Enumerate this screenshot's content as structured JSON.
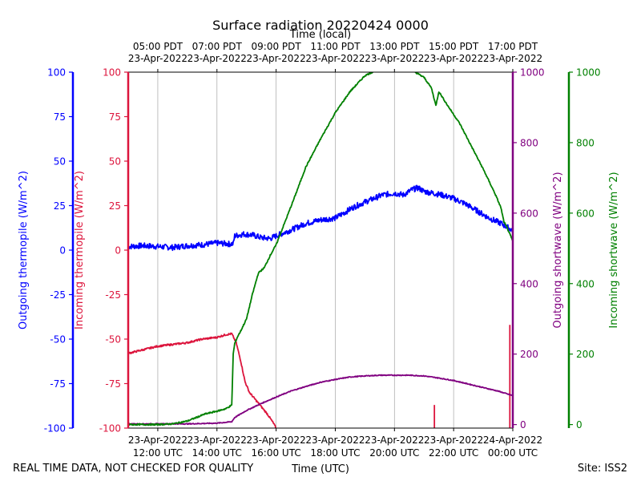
{
  "chart_data": {
    "type": "line",
    "title": "Surface radiation 20220424 0000",
    "top_axis_label": "Time (local)",
    "xlabel": "Time (UTC)",
    "footer_left": "REAL TIME DATA, NOT CHECKED FOR QUALITY",
    "footer_right": "Site: ISS2",
    "x_range_utc_hours": [
      11.0,
      24.0
    ],
    "x_ticks_bottom": [
      {
        "hour": 12,
        "date": "23-Apr-2022",
        "time": "12:00 UTC"
      },
      {
        "hour": 14,
        "date": "23-Apr-2022",
        "time": "14:00 UTC"
      },
      {
        "hour": 16,
        "date": "23-Apr-2022",
        "time": "16:00 UTC"
      },
      {
        "hour": 18,
        "date": "23-Apr-2022",
        "time": "18:00 UTC"
      },
      {
        "hour": 20,
        "date": "23-Apr-2022",
        "time": "20:00 UTC"
      },
      {
        "hour": 22,
        "date": "23-Apr-2022",
        "time": "22:00 UTC"
      },
      {
        "hour": 24,
        "date": "24-Apr-2022",
        "time": "00:00 UTC"
      }
    ],
    "x_ticks_top": [
      {
        "hour": 12,
        "time": "05:00 PDT",
        "date": "23-Apr-2022"
      },
      {
        "hour": 14,
        "time": "07:00 PDT",
        "date": "23-Apr-2022"
      },
      {
        "hour": 16,
        "time": "09:00 PDT",
        "date": "23-Apr-2022"
      },
      {
        "hour": 18,
        "time": "11:00 PDT",
        "date": "23-Apr-2022"
      },
      {
        "hour": 20,
        "time": "13:00 PDT",
        "date": "23-Apr-2022"
      },
      {
        "hour": 22,
        "time": "15:00 PDT",
        "date": "23-Apr-2022"
      },
      {
        "hour": 24,
        "time": "17:00 PDT",
        "date": "23-Apr-2022"
      }
    ],
    "grid": "vertical",
    "axes": {
      "outgoing_thermopile": {
        "label": "Outgoing thermopile (W/m^2)",
        "color": "#0000ff",
        "ylim": [
          -100,
          100
        ],
        "ticks": [
          -100,
          -75,
          -50,
          -25,
          0,
          25,
          50,
          75,
          100
        ]
      },
      "incoming_thermopile": {
        "label": "Incoming thermopile (W/m^2)",
        "color": "#dc143c",
        "ylim": [
          -100,
          100
        ],
        "ticks": [
          -100,
          -75,
          -50,
          -25,
          0,
          25,
          50,
          75,
          100
        ]
      },
      "outgoing_shortwave": {
        "label": "Outgoing shortwave (W/m^2)",
        "color": "#800080",
        "ylim": [
          -10,
          1000
        ],
        "ticks": [
          0,
          200,
          400,
          600,
          800,
          1000
        ]
      },
      "incoming_shortwave": {
        "label": "Incoming shortwave (W/m^2)",
        "color": "#008000",
        "ylim": [
          -10,
          1000
        ],
        "ticks": [
          0,
          200,
          400,
          600,
          800,
          1000
        ]
      }
    },
    "series": [
      {
        "key": "outgoing_thermopile",
        "axis": "outgoing_thermopile",
        "color": "#0000ff",
        "x": [
          11.0,
          11.5,
          12.0,
          12.5,
          13.0,
          13.5,
          14.0,
          14.4,
          14.55,
          14.6,
          14.9,
          15.2,
          15.5,
          15.8,
          16.0,
          16.3,
          16.6,
          17.0,
          17.5,
          18.0,
          18.3,
          18.6,
          19.0,
          19.3,
          19.6,
          20.0,
          20.3,
          20.6,
          20.8,
          21.0,
          21.3,
          21.6,
          22.0,
          22.4,
          22.8,
          23.2,
          23.6,
          23.8,
          24.0
        ],
        "y": [
          2,
          2.5,
          2,
          1.5,
          2.5,
          3,
          4,
          3.5,
          3.5,
          8,
          9,
          8.5,
          7,
          6.5,
          8,
          10,
          12,
          15,
          17,
          18,
          21,
          24,
          27,
          29,
          31,
          32,
          31,
          34,
          35,
          33,
          32,
          31,
          29,
          26,
          22,
          18,
          15,
          13,
          11
        ],
        "noise": 1.6
      },
      {
        "key": "incoming_thermopile",
        "axis": "incoming_thermopile",
        "color": "#dc143c",
        "x": [
          11.0,
          11.5,
          12.0,
          12.5,
          13.0,
          13.5,
          14.0,
          14.3,
          14.5,
          14.65,
          14.8,
          14.95,
          15.1,
          15.4,
          15.7,
          15.9,
          16.0
        ],
        "y": [
          -58,
          -56,
          -54,
          -53,
          -52,
          -50,
          -49,
          -47.5,
          -47,
          -52,
          -62,
          -74,
          -80,
          -86,
          -92,
          -97,
          -100
        ],
        "noise": 0.5,
        "spikes": [
          {
            "x": 21.35,
            "y0": -100,
            "y1": -87
          },
          {
            "x": 23.9,
            "y0": -100,
            "y1": -42
          }
        ]
      },
      {
        "key": "outgoing_shortwave",
        "axis": "outgoing_shortwave",
        "color": "#800080",
        "x": [
          11.0,
          12.0,
          13.0,
          14.0,
          14.5,
          14.6,
          15.0,
          15.5,
          16.0,
          16.5,
          17.0,
          17.5,
          18.0,
          18.5,
          19.0,
          19.5,
          20.0,
          20.5,
          21.0,
          21.5,
          22.0,
          22.5,
          23.0,
          23.5,
          24.0
        ],
        "y": [
          2,
          2,
          2,
          4,
          8,
          20,
          40,
          60,
          78,
          95,
          108,
          120,
          128,
          135,
          138,
          140,
          140,
          140,
          138,
          132,
          125,
          115,
          105,
          95,
          82
        ],
        "noise": 1.2
      },
      {
        "key": "incoming_shortwave",
        "axis": "incoming_shortwave",
        "color": "#008000",
        "x": [
          11.0,
          11.5,
          12.0,
          12.5,
          13.0,
          13.3,
          13.6,
          14.0,
          14.3,
          14.5,
          14.55,
          14.6,
          14.7,
          14.8,
          15.0,
          15.2,
          15.4,
          15.6,
          15.8,
          16.0,
          16.3,
          16.6,
          17.0,
          17.5,
          18.0,
          18.5,
          19.0,
          19.5,
          20.0,
          20.5,
          21.0,
          21.25,
          21.4,
          21.5,
          21.8,
          22.2,
          22.6,
          23.0,
          23.4,
          23.6,
          23.7,
          23.8,
          24.0
        ],
        "y": [
          0,
          0,
          0,
          2,
          10,
          20,
          30,
          38,
          45,
          55,
          200,
          230,
          250,
          265,
          300,
          370,
          430,
          445,
          480,
          510,
          575,
          640,
          730,
          810,
          885,
          945,
          990,
          1010,
          1015,
          1010,
          985,
          955,
          905,
          945,
          905,
          855,
          790,
          725,
          655,
          615,
          575,
          560,
          520
        ],
        "noise": 2
      }
    ]
  }
}
